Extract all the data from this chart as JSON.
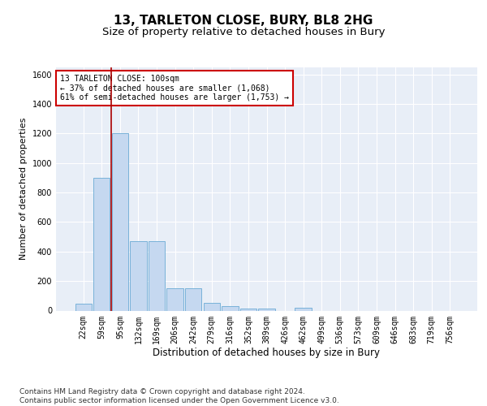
{
  "title1": "13, TARLETON CLOSE, BURY, BL8 2HG",
  "title2": "Size of property relative to detached houses in Bury",
  "xlabel": "Distribution of detached houses by size in Bury",
  "ylabel": "Number of detached properties",
  "categories": [
    "22sqm",
    "59sqm",
    "95sqm",
    "132sqm",
    "169sqm",
    "206sqm",
    "242sqm",
    "279sqm",
    "316sqm",
    "352sqm",
    "389sqm",
    "426sqm",
    "462sqm",
    "499sqm",
    "536sqm",
    "573sqm",
    "609sqm",
    "646sqm",
    "683sqm",
    "719sqm",
    "756sqm"
  ],
  "values": [
    45,
    900,
    1200,
    470,
    470,
    150,
    150,
    50,
    30,
    15,
    15,
    0,
    20,
    0,
    0,
    0,
    0,
    0,
    0,
    0,
    0
  ],
  "bar_color": "#c5d8f0",
  "bar_edge_color": "#6aaad4",
  "vline_x": 1.5,
  "vline_color": "#aa0000",
  "annotation_text": "13 TARLETON CLOSE: 100sqm\n← 37% of detached houses are smaller (1,068)\n61% of semi-detached houses are larger (1,753) →",
  "annotation_box_color": "#ffffff",
  "annotation_box_edge": "#cc0000",
  "ylim": [
    0,
    1650
  ],
  "yticks": [
    0,
    200,
    400,
    600,
    800,
    1000,
    1200,
    1400,
    1600
  ],
  "bg_color": "#e8eef7",
  "footer": "Contains HM Land Registry data © Crown copyright and database right 2024.\nContains public sector information licensed under the Open Government Licence v3.0.",
  "title1_fontsize": 11,
  "title2_fontsize": 9.5,
  "xlabel_fontsize": 8.5,
  "ylabel_fontsize": 8,
  "tick_fontsize": 7,
  "footer_fontsize": 6.5
}
